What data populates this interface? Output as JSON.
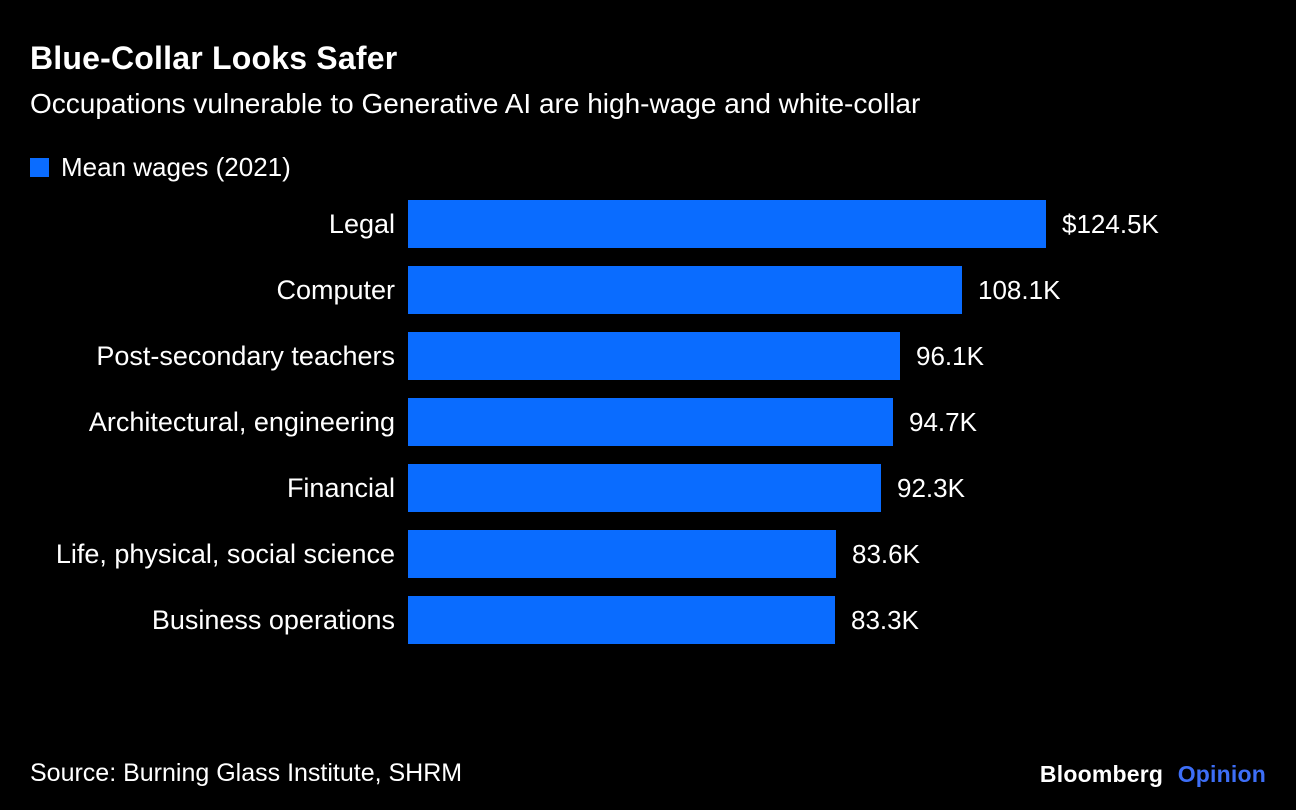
{
  "chart_data": {
    "type": "bar",
    "orientation": "horizontal",
    "title": "Blue-Collar Looks Safer",
    "subtitle": "Occupations vulnerable to Generative AI are high-wage and white-collar",
    "legend": [
      {
        "label": "Mean wages (2021)",
        "color": "#0a6cff"
      }
    ],
    "categories": [
      "Legal",
      "Computer",
      "Post-secondary teachers",
      "Architectural, engineering",
      "Financial",
      "Life, physical, social science",
      "Business operations"
    ],
    "values": [
      124.5,
      108.1,
      96.1,
      94.7,
      92.3,
      83.6,
      83.3
    ],
    "value_labels": [
      "$124.5K",
      "108.1K",
      "96.1K",
      "94.7K",
      "92.3K",
      "83.6K",
      "83.3K"
    ],
    "xlim": [
      0,
      124.5
    ],
    "grid": false,
    "legend_position": "top-left",
    "bar_color": "#0a6cff"
  },
  "source": "Source: Burning Glass Institute, SHRM",
  "brand": {
    "name": "Bloomberg",
    "suffix": "Opinion"
  },
  "colors": {
    "background": "#000000",
    "text": "#ffffff",
    "bar": "#0a6cff",
    "brand_suffix": "#3d6ef7"
  }
}
